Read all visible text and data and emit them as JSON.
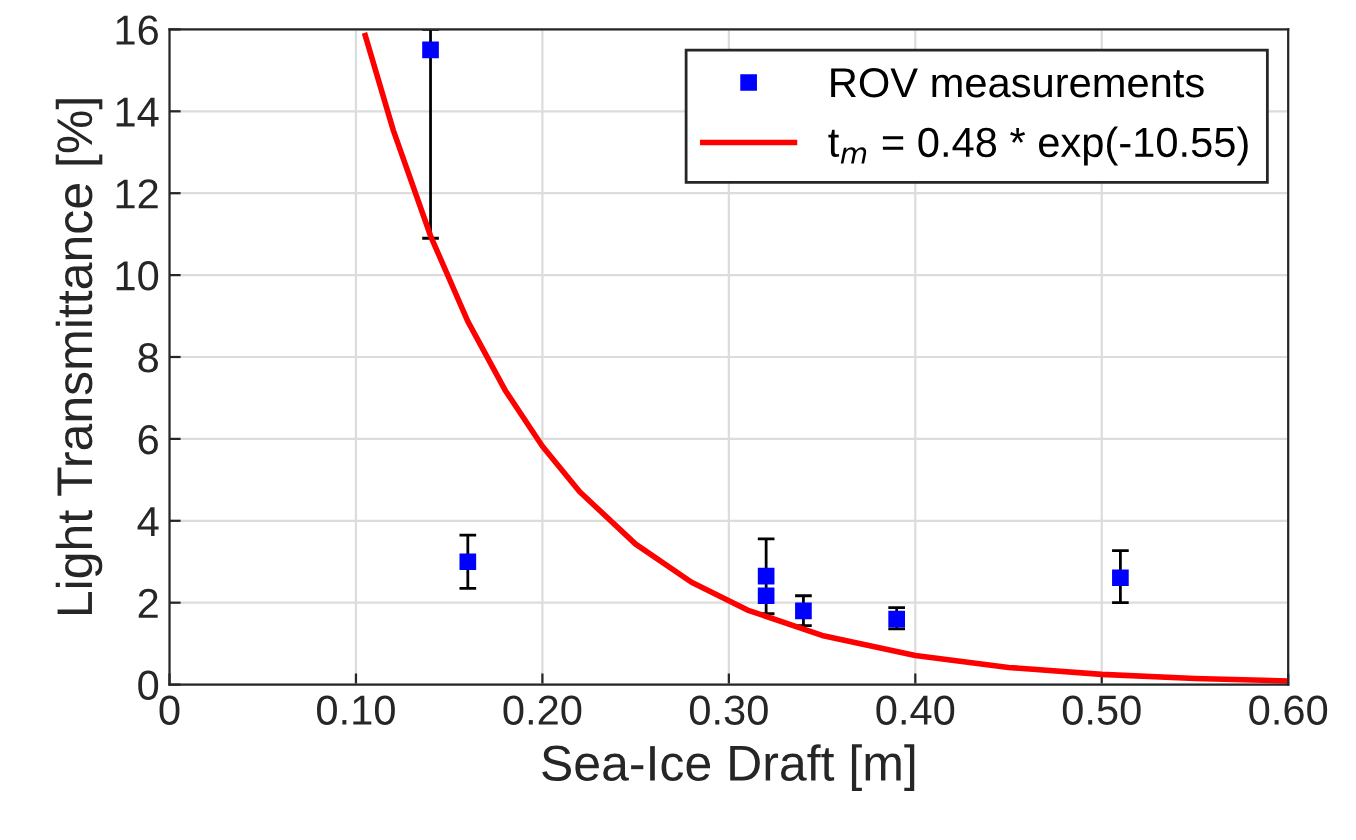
{
  "chart_data": {
    "type": "scatter",
    "xlabel": "Sea-Ice Draft [m]",
    "ylabel": "Light Transmittance [%]",
    "series": [
      {
        "name": "ROV measurements",
        "color": "#0000ff",
        "marker": "square",
        "x": [
          0.14,
          0.16,
          0.32,
          0.32,
          0.34,
          0.39,
          0.51
        ],
        "values": [
          15.5,
          3.0,
          2.65,
          2.17,
          1.8,
          1.6,
          2.61
        ],
        "errors": [
          [
            10.9,
            16
          ],
          [
            2.35,
            3.65
          ],
          [
            1.73,
            3.56
          ],
          null,
          [
            1.44,
            2.17
          ],
          [
            1.36,
            1.88
          ],
          [
            2.0,
            3.27
          ]
        ]
      },
      {
        "name": "t$_{m}$ = 0.48 * exp(-10.55)",
        "type": "line",
        "color": "#ff0000",
        "marker": "none",
        "line_style": "solid",
        "x": [
          0.105,
          0.12,
          0.14,
          0.16,
          0.18,
          0.2,
          0.22,
          0.25,
          0.28,
          0.31,
          0.35,
          0.4,
          0.45,
          0.5,
          0.55,
          0.6
        ],
        "values": [
          15.85,
          13.54,
          10.96,
          8.87,
          7.19,
          5.82,
          4.71,
          3.43,
          2.5,
          1.82,
          1.2,
          0.71,
          0.42,
          0.25,
          0.15,
          0.09
        ]
      }
    ],
    "xlim": [
      0,
      0.6
    ],
    "xticks": [
      0,
      {
        "value": 0.1,
        "label": "0.10"
      },
      {
        "value": 0.2,
        "label": "0.20"
      },
      {
        "value": 0.3,
        "label": "0.30"
      },
      {
        "value": 0.4,
        "label": "0.40"
      },
      {
        "value": 0.5,
        "label": "0.50"
      },
      {
        "value": 0.6,
        "label": "0.60"
      }
    ],
    "ylim": [
      0,
      16
    ],
    "yticks": [
      0,
      2,
      4,
      6,
      8,
      10,
      12,
      14,
      16
    ],
    "grid": true,
    "legend": "top right"
  }
}
